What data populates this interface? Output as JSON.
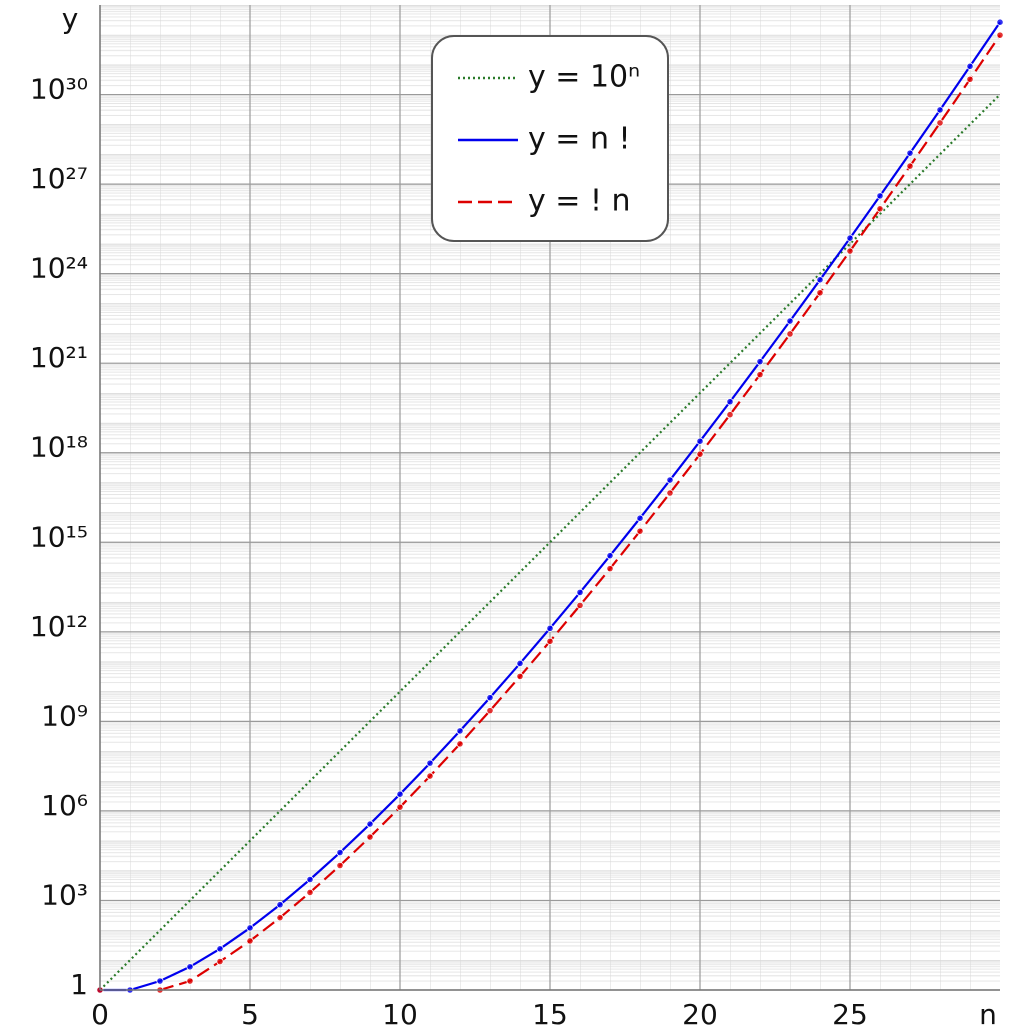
{
  "chart_data": {
    "type": "line",
    "y_label": "y",
    "x_label": "n",
    "yscale": "log",
    "grid": true,
    "legend": "top",
    "xlim": [
      0,
      30
    ],
    "ylim": [
      1,
      1e+33
    ],
    "xticks": [
      0,
      5,
      10,
      15,
      20,
      25
    ],
    "yticks": [
      1,
      {
        "value": 1000.0,
        "label": "10³"
      },
      {
        "value": 1000000.0,
        "label": "10⁶"
      },
      {
        "value": 1000000000.0,
        "label": "10⁹"
      },
      {
        "value": 1000000000000.0,
        "label": "10¹²"
      },
      {
        "value": 1000000000000000.0,
        "label": "10¹⁵"
      },
      {
        "value": 1e+18,
        "label": "10¹⁸"
      },
      {
        "value": 1e+21,
        "label": "10²¹"
      },
      {
        "value": 1e+24,
        "label": "10²⁴"
      },
      {
        "value": 1e+27,
        "label": "10²⁷"
      },
      {
        "value": 1e+30,
        "label": "10³⁰"
      }
    ],
    "x": [
      0,
      1,
      2,
      3,
      4,
      5,
      6,
      7,
      8,
      9,
      10,
      11,
      12,
      13,
      14,
      15,
      16,
      17,
      18,
      19,
      20,
      21,
      22,
      23,
      24,
      25,
      26,
      27,
      28,
      29,
      30
    ],
    "series": [
      {
        "name": "y = 10ⁿ",
        "color": "#2a7a2a",
        "style": "dotted",
        "markers": false,
        "values": [
          1,
          10.0,
          100.0,
          1000.0,
          10000.0,
          100000.0,
          1000000.0,
          10000000.0,
          100000000.0,
          1000000000.0,
          10000000000.0,
          100000000000.0,
          1000000000000.0,
          10000000000000.0,
          100000000000000.0,
          1000000000000000.0,
          1e+16,
          1e+17,
          1e+18,
          1e+19,
          1e+20,
          1e+21,
          1e+22,
          1e+23,
          1e+24,
          1e+25,
          1e+26,
          1e+27,
          1e+28,
          1e+29,
          1e+30
        ]
      },
      {
        "name": "y = n !",
        "color": "#0000ee",
        "style": "solid",
        "markers": true,
        "values": [
          1,
          1,
          2,
          6,
          24,
          120,
          720,
          5040,
          40320,
          362880,
          3628800,
          39916800,
          479001600,
          6227020800,
          87178291200,
          1307674368000,
          20922789888000,
          355687428096000,
          6402373705728000,
          121645100408832000,
          2432902008176640000,
          51090942171709440000,
          1124000727777607680000,
          25852016738884976640000,
          620448401733239439360000,
          15511210043330985984000000,
          403291461126605635584000000,
          10888869450418352160768000000,
          304888344611713860501504000000,
          8841761993739701954543616000000,
          265252859812191058636308480000000
        ]
      },
      {
        "name": "y = ! n",
        "color": "#dd0000",
        "style": "dashed",
        "markers": true,
        "values": [
          1,
          null,
          1,
          2,
          9,
          44,
          265,
          1854,
          14833,
          133496,
          1334961,
          14684570,
          176214841,
          2290792932,
          32071101049,
          481066515734,
          7697064251745,
          130850092279664,
          2355301661033953,
          44750731559645106,
          895014631192902121,
          18795307255050944540,
          413496759611120779881,
          9510425471055777937262,
          228250211305338670494289,
          5706255282633466762357224,
          148362637348470135821287825,
          4005791208408693667174771274,
          112162153835443422680893595673,
          3252702461227859257745914274516,
          97581073836835777732377428235481
        ]
      }
    ]
  }
}
